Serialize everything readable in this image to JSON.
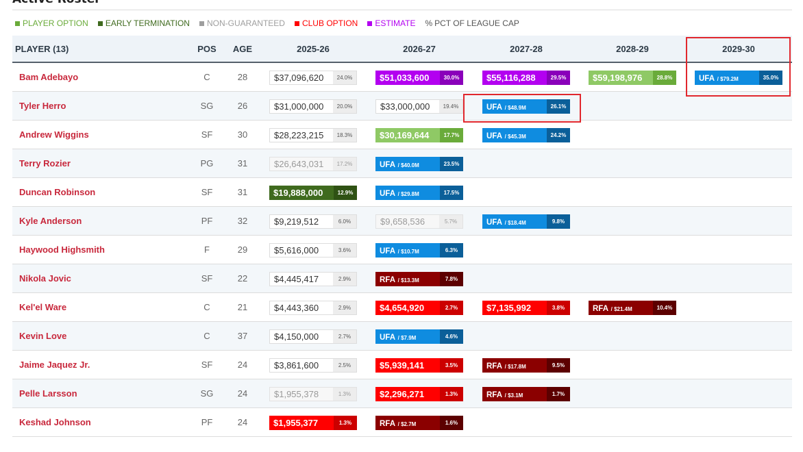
{
  "section": {
    "title": "Active Roster"
  },
  "legend": [
    {
      "label": "PLAYER OPTION",
      "color": "#6aab3a"
    },
    {
      "label": "EARLY TERMINATION",
      "color": "#3f6a1e"
    },
    {
      "label": "NON-GUARANTEED",
      "color": "#9e9e9e"
    },
    {
      "label": "CLUB OPTION",
      "color": "#ff0000"
    },
    {
      "label": "ESTIMATE",
      "color": "#b300f0"
    },
    {
      "label": "PCT OF LEAGUE CAP",
      "color": "#555555",
      "symbol": "%"
    }
  ],
  "table": {
    "headers": {
      "player": "PLAYER (13)",
      "pos": "POS",
      "age": "AGE",
      "seasons": [
        "2025-26",
        "2026-27",
        "2027-28",
        "2028-29",
        "2029-30"
      ]
    },
    "rows": [
      {
        "name": "Bam Adebayo",
        "pos": "C",
        "age": "28",
        "cells": [
          {
            "type": "guaranteed",
            "amount": "$37,096,620",
            "pct": "24.0%"
          },
          {
            "type": "estimate",
            "amount": "$51,033,600",
            "pct": "30.0%"
          },
          {
            "type": "estimate",
            "amount": "$55,116,288",
            "pct": "29.5%"
          },
          {
            "type": "player-option",
            "amount": "$59,198,976",
            "pct": "28.8%"
          },
          {
            "type": "ufa",
            "label": "UFA",
            "sub": "/ $79.2M",
            "pct": "35.0%"
          }
        ]
      },
      {
        "name": "Tyler Herro",
        "pos": "SG",
        "age": "26",
        "cells": [
          {
            "type": "guaranteed",
            "amount": "$31,000,000",
            "pct": "20.0%"
          },
          {
            "type": "guaranteed",
            "amount": "$33,000,000",
            "pct": "19.4%"
          },
          {
            "type": "ufa",
            "label": "UFA",
            "sub": "/ $48.9M",
            "pct": "26.1%"
          },
          null,
          null
        ]
      },
      {
        "name": "Andrew Wiggins",
        "pos": "SF",
        "age": "30",
        "cells": [
          {
            "type": "guaranteed",
            "amount": "$28,223,215",
            "pct": "18.3%"
          },
          {
            "type": "player-option",
            "amount": "$30,169,644",
            "pct": "17.7%"
          },
          {
            "type": "ufa",
            "label": "UFA",
            "sub": "/ $45.3M",
            "pct": "24.2%"
          },
          null,
          null
        ]
      },
      {
        "name": "Terry Rozier",
        "pos": "PG",
        "age": "31",
        "cells": [
          {
            "type": "non-guaranteed",
            "amount": "$26,643,031",
            "pct": "17.2%"
          },
          {
            "type": "ufa",
            "label": "UFA",
            "sub": "/ $40.0M",
            "pct": "23.5%"
          },
          null,
          null,
          null
        ]
      },
      {
        "name": "Duncan Robinson",
        "pos": "SF",
        "age": "31",
        "cells": [
          {
            "type": "early-termination",
            "amount": "$19,888,000",
            "pct": "12.9%"
          },
          {
            "type": "ufa",
            "label": "UFA",
            "sub": "/ $29.8M",
            "pct": "17.5%"
          },
          null,
          null,
          null
        ]
      },
      {
        "name": "Kyle Anderson",
        "pos": "PF",
        "age": "32",
        "cells": [
          {
            "type": "guaranteed",
            "amount": "$9,219,512",
            "pct": "6.0%"
          },
          {
            "type": "non-guaranteed",
            "amount": "$9,658,536",
            "pct": "5.7%"
          },
          {
            "type": "ufa",
            "label": "UFA",
            "sub": "/ $18.4M",
            "pct": "9.8%"
          },
          null,
          null
        ]
      },
      {
        "name": "Haywood Highsmith",
        "pos": "F",
        "age": "29",
        "cells": [
          {
            "type": "guaranteed",
            "amount": "$5,616,000",
            "pct": "3.6%"
          },
          {
            "type": "ufa",
            "label": "UFA",
            "sub": "/ $10.7M",
            "pct": "6.3%"
          },
          null,
          null,
          null
        ]
      },
      {
        "name": "Nikola Jovic",
        "pos": "SF",
        "age": "22",
        "cells": [
          {
            "type": "guaranteed",
            "amount": "$4,445,417",
            "pct": "2.9%"
          },
          {
            "type": "rfa",
            "label": "RFA",
            "sub": "/ $13.3M",
            "pct": "7.8%"
          },
          null,
          null,
          null
        ]
      },
      {
        "name": "Kel'el Ware",
        "pos": "C",
        "age": "21",
        "cells": [
          {
            "type": "guaranteed",
            "amount": "$4,443,360",
            "pct": "2.9%"
          },
          {
            "type": "club-option",
            "amount": "$4,654,920",
            "pct": "2.7%"
          },
          {
            "type": "club-option",
            "amount": "$7,135,992",
            "pct": "3.8%"
          },
          {
            "type": "rfa",
            "label": "RFA",
            "sub": "/ $21.4M",
            "pct": "10.4%"
          },
          null
        ]
      },
      {
        "name": "Kevin Love",
        "pos": "C",
        "age": "37",
        "cells": [
          {
            "type": "guaranteed",
            "amount": "$4,150,000",
            "pct": "2.7%"
          },
          {
            "type": "ufa",
            "label": "UFA",
            "sub": "/ $7.9M",
            "pct": "4.6%"
          },
          null,
          null,
          null
        ]
      },
      {
        "name": "Jaime Jaquez Jr.",
        "pos": "SF",
        "age": "24",
        "cells": [
          {
            "type": "guaranteed",
            "amount": "$3,861,600",
            "pct": "2.5%"
          },
          {
            "type": "club-option",
            "amount": "$5,939,141",
            "pct": "3.5%"
          },
          {
            "type": "rfa",
            "label": "RFA",
            "sub": "/ $17.8M",
            "pct": "9.5%"
          },
          null,
          null
        ]
      },
      {
        "name": "Pelle Larsson",
        "pos": "SG",
        "age": "24",
        "cells": [
          {
            "type": "non-guaranteed",
            "amount": "$1,955,378",
            "pct": "1.3%"
          },
          {
            "type": "club-option",
            "amount": "$2,296,271",
            "pct": "1.3%"
          },
          {
            "type": "rfa",
            "label": "RFA",
            "sub": "/ $3.1M",
            "pct": "1.7%"
          },
          null,
          null
        ]
      },
      {
        "name": "Keshad Johnson",
        "pos": "PF",
        "age": "24",
        "cells": [
          {
            "type": "club-option",
            "amount": "$1,955,377",
            "pct": "1.3%"
          },
          {
            "type": "rfa",
            "label": "RFA",
            "sub": "/ $2.7M",
            "pct": "1.6%"
          },
          null,
          null,
          null
        ]
      }
    ]
  },
  "highlights": [
    "header-2029-30-and-bam-adebayo-ufa",
    "tyler-herro-2027-28-ufa"
  ]
}
